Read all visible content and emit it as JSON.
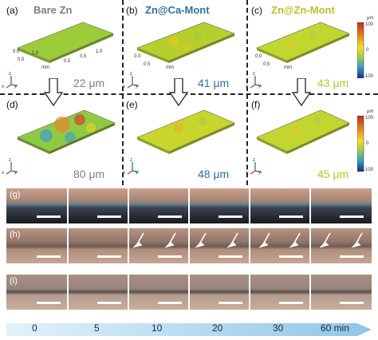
{
  "panels_top": [
    {
      "label": "(a)",
      "title": "Bare Zn",
      "title_color": "#7f7f7f",
      "value": "22 μm",
      "value_color": "#808080"
    },
    {
      "label": "(b)",
      "title": "Zn@Ca-Mont",
      "title_color": "#2f6fa3",
      "value": "41 μm",
      "value_color": "#2f6fa3"
    },
    {
      "label": "(c)",
      "title": "Zn@Zn-Mont",
      "title_color": "#b7c42a",
      "value": "43 μm",
      "value_color": "#b7c42a"
    }
  ],
  "panels_bottom": [
    {
      "label": "(d)",
      "value": "80 μm",
      "value_color": "#808080"
    },
    {
      "label": "(e)",
      "value": "48 μm",
      "value_color": "#2f6fa3"
    },
    {
      "label": "(f)",
      "value": "45 μm",
      "value_color": "#b7c42a"
    }
  ],
  "axis_ticks": {
    "mm": "mm",
    "ticks_a": [
      "0.0",
      "0.5",
      "1.0",
      "0.0",
      "0.5",
      "1.0"
    ],
    "ticks_short": [
      "0.0",
      "0.5",
      "1.0"
    ]
  },
  "colorbar": {
    "unit": "μm",
    "max": "100",
    "mid": "0",
    "min": "-100",
    "colors": [
      "#c4261c",
      "#e58b20",
      "#f2e02b",
      "#a8d340",
      "#37a0c7",
      "#1d2a8a"
    ]
  },
  "axes_letters": {
    "z": "z",
    "x": "x",
    "y": "y"
  },
  "strips": [
    {
      "label": "(g)"
    },
    {
      "label": "(h)"
    },
    {
      "label": "(i)"
    }
  ],
  "timeline": {
    "labels": [
      "0",
      "5",
      "10",
      "20",
      "30",
      "60 min"
    ],
    "arrow_color": "#7fc0e6"
  }
}
